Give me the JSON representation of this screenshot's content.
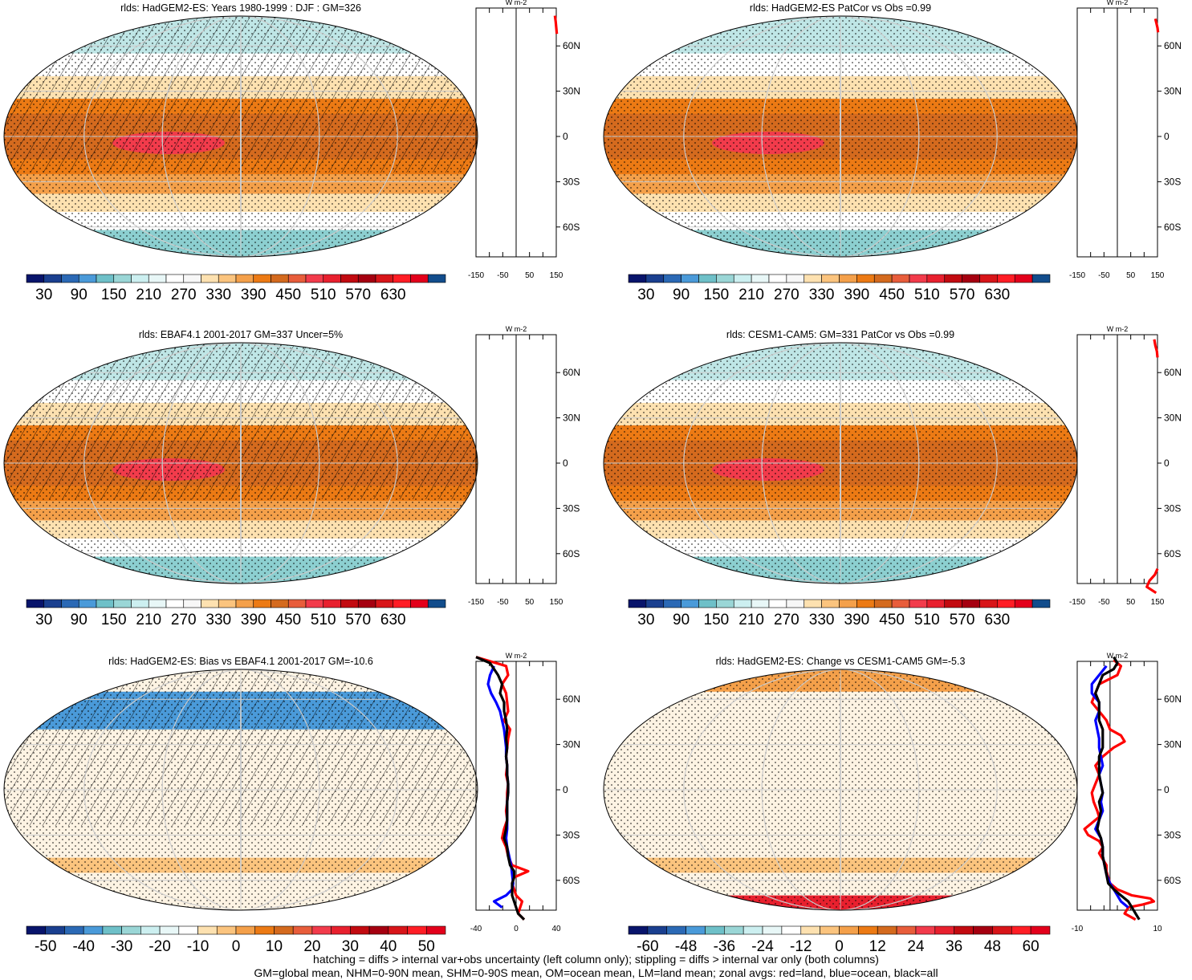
{
  "footer": {
    "line1": "hatching = diffs > internal var+obs uncertainty (left column only); stippling = diffs > internal var only (both columns)",
    "line2": "GM=global mean, NHM=0-90N mean, SHM=0-90S mean, OM=ocean mean, LM=land mean; zonal avgs: red=land, blue=ocean, black=all"
  },
  "colors": {
    "land": "#ff0000",
    "ocean": "#0000ff",
    "all": "#000000",
    "grid": "#cccccc",
    "abs_palette": [
      "#08146b",
      "#1a3f8f",
      "#2b69b5",
      "#4a9ad9",
      "#6ec0c8",
      "#9ad6d6",
      "#cceff0",
      "#e8f7f7",
      "#ffffff",
      "#f7f7f7",
      "#fde1b0",
      "#fbc47e",
      "#f4a04a",
      "#ec7a14",
      "#d46a1e",
      "#e85d3b",
      "#f23b4b",
      "#e8202e",
      "#c20a10",
      "#a50010",
      "#d81519",
      "#ff1d25",
      "#e3001b",
      "#124d8c"
    ],
    "diff_palette": [
      "#08146b",
      "#1a3f8f",
      "#2b69b5",
      "#4a9ad9",
      "#6ec0c8",
      "#9ad6d6",
      "#cceff0",
      "#e8f7f7",
      "#ffffff",
      "#fde1b0",
      "#fbc47e",
      "#f4a04a",
      "#ec7a14",
      "#d46a1e",
      "#e85d3b",
      "#f23b4b",
      "#e8202e",
      "#c20a10",
      "#a50010",
      "#d81519",
      "#ff1d25",
      "#e3001b"
    ]
  },
  "chart_data": [
    {
      "type": "heatmap",
      "title": "rlds: HadGEM2-ES: Years 1980-1999 : DJF : GM=326",
      "colorbar": {
        "labels": [
          "30",
          "90",
          "150",
          "210",
          "270",
          "330",
          "390",
          "450",
          "510",
          "570",
          "630"
        ]
      },
      "zonal": {
        "unit": "W m-2",
        "ticks": [
          "-150",
          "-50",
          "50",
          "150"
        ],
        "xlim": [
          -150,
          150
        ],
        "lat_labels": [
          "60N",
          "30N",
          "0",
          "30S",
          "60S"
        ],
        "series": [
          {
            "name": "land",
            "lat": [
              80,
              76,
              72,
              68
            ],
            "values": [
              145,
              148,
              150,
              152
            ]
          }
        ]
      }
    },
    {
      "type": "heatmap",
      "title": "rlds: HadGEM2-ES PatCor vs Obs =0.99",
      "colorbar": {
        "labels": [
          "30",
          "90",
          "150",
          "210",
          "270",
          "330",
          "390",
          "450",
          "510",
          "570",
          "630"
        ]
      },
      "zonal": {
        "unit": "W m-2",
        "ticks": [
          "-150",
          "-50",
          "50",
          "150"
        ],
        "xlim": [
          -150,
          150
        ],
        "lat_labels": [
          "60N",
          "30N",
          "0",
          "30S",
          "60S"
        ],
        "series": [
          {
            "name": "land",
            "lat": [
              78,
              75,
              72,
              69
            ],
            "values": [
              142,
              146,
              150,
              152
            ]
          }
        ]
      }
    },
    {
      "type": "heatmap",
      "title": "rlds: EBAF4.1 2001-2017 GM=337 Uncer=5%",
      "colorbar": {
        "labels": [
          "30",
          "90",
          "150",
          "210",
          "270",
          "330",
          "390",
          "450",
          "510",
          "570",
          "630"
        ]
      },
      "zonal": {
        "unit": "W m-2",
        "ticks": [
          "-150",
          "-50",
          "50",
          "150"
        ],
        "xlim": [
          -150,
          150
        ],
        "lat_labels": [
          "60N",
          "30N",
          "0",
          "30S",
          "60S"
        ],
        "series": []
      }
    },
    {
      "type": "heatmap",
      "title": "rlds: CESM1-CAM5: GM=331 PatCor vs Obs =0.99",
      "colorbar": {
        "labels": [
          "30",
          "90",
          "150",
          "210",
          "270",
          "330",
          "390",
          "450",
          "510",
          "570",
          "630"
        ]
      },
      "zonal": {
        "unit": "W m-2",
        "ticks": [
          "-150",
          "-50",
          "50",
          "150"
        ],
        "xlim": [
          -150,
          150
        ],
        "lat_labels": [
          "60N",
          "30N",
          "0",
          "30S",
          "60S"
        ],
        "series": [
          {
            "name": "land",
            "lat": [
              82,
              78,
              74,
              70
            ],
            "values": [
              138,
              142,
              148,
              150
            ]
          },
          {
            "name": "land",
            "lat": [
              -70,
              -74,
              -78,
              -82,
              -86
            ],
            "values": [
              150,
              140,
              120,
              110,
              145
            ]
          }
        ]
      }
    },
    {
      "type": "heatmap",
      "title": "rlds: HadGEM2-ES: Bias vs EBAF4.1 2001-2017 GM=-10.6",
      "colorbar": {
        "labels": [
          "-50",
          "-40",
          "-30",
          "-20",
          "-10",
          "0",
          "10",
          "20",
          "30",
          "40",
          "50"
        ]
      },
      "zonal": {
        "unit": "W m-2",
        "ticks": [
          "-40",
          "0",
          "40"
        ],
        "xlim": [
          -40,
          40
        ],
        "lat_labels": [
          "60N",
          "30N",
          "0",
          "30S",
          "60S"
        ],
        "series": [
          {
            "name": "land",
            "lat": [
              88,
              82,
              76,
              70,
              64,
              58,
              52,
              46,
              40,
              34,
              28,
              22,
              16,
              10,
              4,
              -2,
              -8,
              -14,
              -20,
              -26,
              -32,
              -38,
              -44,
              -50,
              -54,
              -58,
              -62,
              -66,
              -70,
              -74,
              -78,
              -82,
              -86
            ],
            "values": [
              -40,
              -10,
              -8,
              -14,
              -10,
              -9,
              -8,
              -12,
              -6,
              -8,
              -9,
              -10,
              -9,
              -10,
              -8,
              -9,
              -9,
              -10,
              -9,
              -12,
              -14,
              -10,
              -8,
              -4,
              12,
              -2,
              -4,
              -2,
              0,
              6,
              4,
              2,
              8
            ]
          },
          {
            "name": "ocean",
            "lat": [
              82,
              76,
              70,
              64,
              58,
              52,
              46,
              40,
              34,
              28,
              22,
              16,
              10,
              4,
              -2,
              -8,
              -14,
              -20,
              -26,
              -32,
              -38,
              -44,
              -50,
              -56,
              -62,
              -66,
              -70,
              -74,
              -78
            ],
            "values": [
              -22,
              -26,
              -28,
              -25,
              -20,
              -16,
              -14,
              -12,
              -11,
              -10,
              -10,
              -9,
              -9,
              -8,
              -8,
              -9,
              -9,
              -9,
              -9,
              -10,
              -9,
              -7,
              -5,
              -4,
              -3,
              -4,
              -10,
              -22,
              -14
            ]
          },
          {
            "name": "all",
            "lat": [
              88,
              84,
              80,
              76,
              70,
              64,
              58,
              52,
              46,
              40,
              34,
              28,
              22,
              16,
              10,
              4,
              -2,
              -8,
              -14,
              -20,
              -26,
              -32,
              -38,
              -44,
              -50,
              -54,
              -58,
              -62,
              -66,
              -70,
              -74,
              -78,
              -82,
              -86
            ],
            "values": [
              -40,
              -26,
              -22,
              -18,
              -14,
              -16,
              -12,
              -12,
              -10,
              -9,
              -10,
              -9,
              -10,
              -9,
              -9,
              -8,
              -8,
              -9,
              -9,
              -9,
              -10,
              -12,
              -9,
              -8,
              -6,
              -2,
              -2,
              -4,
              -4,
              -4,
              -2,
              0,
              2,
              8
            ]
          }
        ]
      }
    },
    {
      "type": "heatmap",
      "title": "rlds: HadGEM2-ES: Change vs CESM1-CAM5 GM=-5.3",
      "colorbar": {
        "labels": [
          "-60",
          "-48",
          "-36",
          "-24",
          "-12",
          "0",
          "12",
          "24",
          "36",
          "48",
          "60"
        ]
      },
      "zonal": {
        "unit": "W m-2",
        "ticks": [
          "-10",
          "10"
        ],
        "xlim": [
          -18,
          26
        ],
        "lat_labels": [
          "60N",
          "30N",
          "0",
          "30S",
          "60S"
        ],
        "series": [
          {
            "name": "land",
            "lat": [
              86,
              82,
              76,
              70,
              64,
              58,
              52,
              46,
              40,
              36,
              32,
              28,
              22,
              16,
              10,
              4,
              -2,
              -8,
              -14,
              -18,
              -22,
              -26,
              -30,
              -34,
              -38,
              -42,
              -46,
              -50,
              -54,
              -58,
              -62,
              -66,
              -70,
              -72,
              -74,
              -76,
              -78,
              -82,
              -86
            ],
            "values": [
              2,
              6,
              4,
              -6,
              -8,
              -10,
              -6,
              -2,
              0,
              6,
              8,
              2,
              -4,
              -8,
              -6,
              -8,
              -10,
              -9,
              -7,
              -6,
              -10,
              -14,
              -12,
              -6,
              -4,
              -6,
              -4,
              -2,
              -2,
              -1,
              0,
              4,
              12,
              22,
              24,
              18,
              10,
              8,
              14
            ]
          },
          {
            "name": "ocean",
            "lat": [
              82,
              76,
              70,
              64,
              58,
              52,
              46,
              40,
              34,
              28,
              22,
              16,
              10,
              4,
              -2,
              -8,
              -14,
              -20,
              -26,
              -32,
              -38,
              -44,
              -50,
              -56,
              -62,
              -66,
              -70,
              -74,
              -78
            ],
            "values": [
              -2,
              -6,
              -10,
              -10,
              -6,
              -6,
              -8,
              -7,
              -6,
              -6,
              -5,
              -4,
              -6,
              -5,
              -4,
              -5,
              -4,
              -6,
              -8,
              -5,
              -4,
              -4,
              -3,
              -2,
              0,
              2,
              4,
              6,
              10
            ]
          },
          {
            "name": "all",
            "lat": [
              88,
              84,
              80,
              76,
              70,
              64,
              58,
              52,
              46,
              40,
              34,
              28,
              22,
              16,
              10,
              4,
              -2,
              -8,
              -14,
              -20,
              -26,
              -32,
              -38,
              -44,
              -50,
              -56,
              -62,
              -66,
              -70,
              -74,
              -78,
              -82,
              -86
            ],
            "values": [
              2,
              4,
              2,
              -4,
              -6,
              -8,
              -6,
              -6,
              -6,
              -4,
              -4,
              -4,
              -6,
              -6,
              -6,
              -5,
              -4,
              -6,
              -5,
              -6,
              -7,
              -5,
              -4,
              -4,
              -3,
              -2,
              -1,
              2,
              6,
              10,
              12,
              14,
              16
            ]
          }
        ]
      }
    }
  ]
}
